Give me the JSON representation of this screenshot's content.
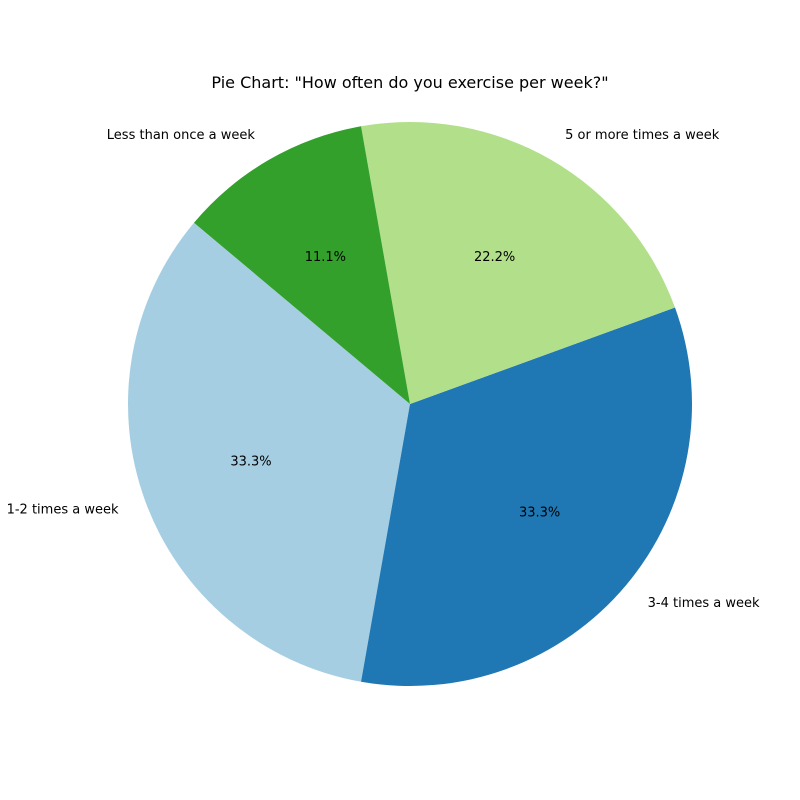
{
  "chart_data": {
    "type": "pie",
    "title": "Pie Chart: \"How often do you exercise per week?\"",
    "start_angle_deg": 140,
    "direction": "counterclockwise",
    "slices": [
      {
        "label": "1-2 times a week",
        "value": 33.3,
        "pct_text": "33.3%",
        "color": "#a6cee3"
      },
      {
        "label": "3-4 times a week",
        "value": 33.3,
        "pct_text": "33.3%",
        "color": "#1f78b4"
      },
      {
        "label": "5 or more times a week",
        "value": 22.2,
        "pct_text": "22.2%",
        "color": "#b2df8a"
      },
      {
        "label": "Less than once a week",
        "value": 11.1,
        "pct_text": "11.1%",
        "color": "#33a02c"
      }
    ]
  }
}
